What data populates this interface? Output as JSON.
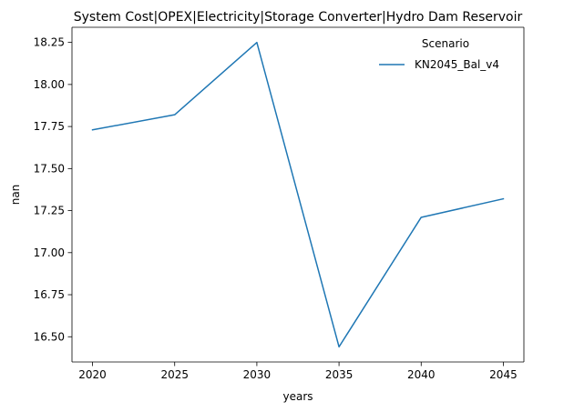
{
  "chart_data": {
    "type": "line",
    "title": "System Cost|OPEX|Electricity|Storage Converter|Hydro Dam Reservoir",
    "xlabel": "years",
    "ylabel": "nan",
    "x": [
      2020,
      2025,
      2030,
      2035,
      2040,
      2045
    ],
    "xticks": [
      "2020",
      "2025",
      "2030",
      "2035",
      "2040",
      "2045"
    ],
    "xlim": [
      2018.75,
      2046.25
    ],
    "yticks": [
      "16.50",
      "16.75",
      "17.00",
      "17.25",
      "17.50",
      "17.75",
      "18.00",
      "18.25"
    ],
    "ytick_values": [
      16.5,
      16.75,
      17.0,
      17.25,
      17.5,
      17.75,
      18.0,
      18.25
    ],
    "ylim": [
      16.35,
      18.34
    ],
    "grid": false,
    "legend": {
      "title": "Scenario",
      "placement": "top-right"
    },
    "series": [
      {
        "name": "KN2045_Bal_v4",
        "color": "#1f77b4",
        "values": [
          17.73,
          17.82,
          18.25,
          16.44,
          17.21,
          17.32
        ]
      }
    ]
  }
}
